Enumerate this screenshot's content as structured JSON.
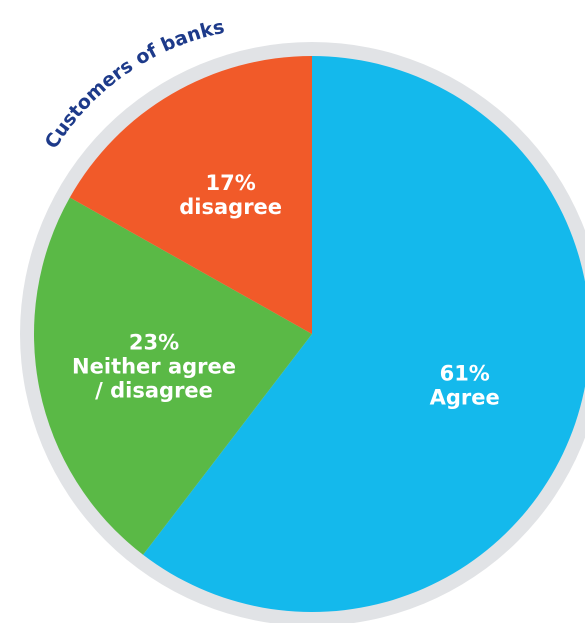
{
  "chart_data": {
    "type": "pie",
    "title": "Customers of banks",
    "start_angle_deg": 0,
    "direction": "clockwise",
    "slices": [
      {
        "value": 61,
        "label": "61%",
        "caption": "Agree",
        "color": "#14b9ec"
      },
      {
        "value": 23,
        "label": "23%",
        "caption": "Neither agree / disagree",
        "caption_lines": [
          "Neither agree",
          "/ disagree"
        ],
        "color": "#5ab946"
      },
      {
        "value": 17,
        "label": "17%",
        "caption": "disagree",
        "color": "#f15a29"
      }
    ],
    "ring_color": "#e1e3e6",
    "title_color": "#1d3a8a"
  }
}
